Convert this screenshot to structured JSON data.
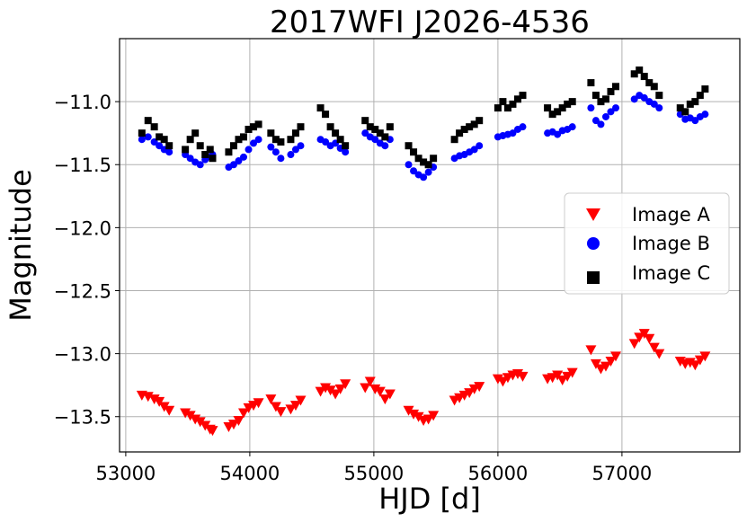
{
  "chart_data": {
    "type": "scatter",
    "title": "2017WFI J2026-4536",
    "xlabel": "HJD [d]",
    "ylabel": "Magnitude",
    "xlim": [
      52950,
      57950
    ],
    "ylim": [
      -10.5,
      -13.78
    ],
    "y_inverted": true,
    "grid": true,
    "legend_position": "center-right",
    "xticks": [
      53000,
      54000,
      55000,
      56000,
      57000
    ],
    "xtick_labels": [
      "53000",
      "54000",
      "55000",
      "56000",
      "57000"
    ],
    "yticks": [
      -11.0,
      -11.5,
      -12.0,
      -12.5,
      -13.0,
      -13.5
    ],
    "ytick_labels": [
      "−11.0",
      "−11.5",
      "−12.0",
      "−12.5",
      "−13.0",
      "−13.5"
    ],
    "series": [
      {
        "name": "Image A",
        "marker": "triangle-down",
        "color": "#ff0000",
        "x": [
          53130,
          53180,
          53230,
          53270,
          53310,
          53350,
          53480,
          53520,
          53560,
          53600,
          53640,
          53680,
          53700,
          53830,
          53870,
          53910,
          53950,
          53990,
          54030,
          54070,
          54170,
          54210,
          54250,
          54330,
          54370,
          54410,
          54570,
          54610,
          54650,
          54690,
          54730,
          54770,
          54930,
          54970,
          55010,
          55050,
          55090,
          55130,
          55280,
          55320,
          55360,
          55400,
          55440,
          55480,
          55650,
          55690,
          55730,
          55770,
          55810,
          55850,
          56000,
          56040,
          56080,
          56120,
          56160,
          56200,
          56400,
          56440,
          56480,
          56520,
          56560,
          56600,
          56750,
          56790,
          56830,
          56870,
          56910,
          56950,
          57100,
          57140,
          57180,
          57220,
          57260,
          57300,
          57470,
          57510,
          57550,
          57590,
          57630,
          57670
        ],
        "y": [
          -13.33,
          -13.34,
          -13.36,
          -13.38,
          -13.42,
          -13.45,
          -13.47,
          -13.49,
          -13.52,
          -13.54,
          -13.57,
          -13.6,
          -13.61,
          -13.58,
          -13.56,
          -13.53,
          -13.47,
          -13.43,
          -13.41,
          -13.39,
          -13.36,
          -13.42,
          -13.46,
          -13.44,
          -13.41,
          -13.37,
          -13.3,
          -13.27,
          -13.29,
          -13.32,
          -13.28,
          -13.24,
          -13.27,
          -13.22,
          -13.28,
          -13.3,
          -13.36,
          -13.32,
          -13.45,
          -13.48,
          -13.5,
          -13.53,
          -13.52,
          -13.49,
          -13.37,
          -13.35,
          -13.33,
          -13.31,
          -13.28,
          -13.26,
          -13.2,
          -13.22,
          -13.19,
          -13.17,
          -13.16,
          -13.18,
          -13.2,
          -13.19,
          -13.17,
          -13.21,
          -13.18,
          -13.15,
          -12.97,
          -13.08,
          -13.12,
          -13.1,
          -13.06,
          -13.02,
          -12.92,
          -12.87,
          -12.84,
          -12.88,
          -12.95,
          -13.0,
          -13.06,
          -13.08,
          -13.07,
          -13.09,
          -13.05,
          -13.02
        ]
      },
      {
        "name": "Image B",
        "marker": "circle",
        "color": "#0000ff",
        "x": [
          53130,
          53180,
          53230,
          53270,
          53310,
          53350,
          53480,
          53520,
          53560,
          53600,
          53640,
          53680,
          53700,
          53830,
          53870,
          53910,
          53950,
          53990,
          54030,
          54070,
          54170,
          54210,
          54250,
          54330,
          54370,
          54410,
          54570,
          54610,
          54650,
          54690,
          54730,
          54770,
          54930,
          54970,
          55010,
          55050,
          55090,
          55130,
          55280,
          55320,
          55360,
          55400,
          55440,
          55480,
          55650,
          55690,
          55730,
          55770,
          55810,
          55850,
          56000,
          56040,
          56080,
          56120,
          56160,
          56200,
          56400,
          56440,
          56480,
          56520,
          56560,
          56600,
          56750,
          56790,
          56830,
          56870,
          56910,
          56950,
          57100,
          57140,
          57180,
          57220,
          57260,
          57300,
          57470,
          57510,
          57550,
          57590,
          57630,
          57670
        ],
        "y": [
          -11.3,
          -11.28,
          -11.32,
          -11.35,
          -11.38,
          -11.4,
          -11.42,
          -11.45,
          -11.48,
          -11.5,
          -11.46,
          -11.44,
          -11.42,
          -11.52,
          -11.5,
          -11.47,
          -11.44,
          -11.38,
          -11.33,
          -11.3,
          -11.36,
          -11.4,
          -11.45,
          -11.42,
          -11.38,
          -11.35,
          -11.3,
          -11.32,
          -11.35,
          -11.33,
          -11.37,
          -11.4,
          -11.25,
          -11.28,
          -11.3,
          -11.33,
          -11.35,
          -11.3,
          -11.5,
          -11.55,
          -11.58,
          -11.6,
          -11.56,
          -11.52,
          -11.45,
          -11.43,
          -11.42,
          -11.4,
          -11.38,
          -11.35,
          -11.28,
          -11.27,
          -11.26,
          -11.25,
          -11.22,
          -11.2,
          -11.25,
          -11.24,
          -11.26,
          -11.23,
          -11.22,
          -11.2,
          -11.05,
          -11.15,
          -11.18,
          -11.12,
          -11.08,
          -11.05,
          -10.98,
          -10.95,
          -10.97,
          -11.0,
          -11.02,
          -11.05,
          -11.1,
          -11.14,
          -11.13,
          -11.15,
          -11.12,
          -11.1
        ]
      },
      {
        "name": "Image C",
        "marker": "square",
        "color": "#000000",
        "x": [
          53130,
          53180,
          53230,
          53270,
          53310,
          53350,
          53480,
          53520,
          53560,
          53600,
          53640,
          53680,
          53700,
          53830,
          53870,
          53910,
          53950,
          53990,
          54030,
          54070,
          54170,
          54210,
          54250,
          54330,
          54370,
          54410,
          54570,
          54610,
          54650,
          54690,
          54730,
          54770,
          54930,
          54970,
          55010,
          55050,
          55090,
          55130,
          55280,
          55320,
          55360,
          55400,
          55440,
          55480,
          55650,
          55690,
          55730,
          55770,
          55810,
          55850,
          56000,
          56040,
          56080,
          56120,
          56160,
          56200,
          56400,
          56440,
          56480,
          56520,
          56560,
          56600,
          56750,
          56790,
          56830,
          56870,
          56910,
          56950,
          57100,
          57140,
          57180,
          57220,
          57260,
          57300,
          57470,
          57510,
          57550,
          57590,
          57630,
          57670
        ],
        "y": [
          -11.25,
          -11.15,
          -11.2,
          -11.28,
          -11.3,
          -11.35,
          -11.38,
          -11.3,
          -11.25,
          -11.35,
          -11.42,
          -11.38,
          -11.45,
          -11.4,
          -11.35,
          -11.3,
          -11.28,
          -11.22,
          -11.2,
          -11.18,
          -11.25,
          -11.3,
          -11.32,
          -11.3,
          -11.25,
          -11.2,
          -11.05,
          -11.1,
          -11.2,
          -11.25,
          -11.3,
          -11.35,
          -11.15,
          -11.2,
          -11.22,
          -11.25,
          -11.28,
          -11.2,
          -11.35,
          -11.4,
          -11.45,
          -11.48,
          -11.5,
          -11.45,
          -11.3,
          -11.25,
          -11.22,
          -11.2,
          -11.18,
          -11.15,
          -11.05,
          -11.0,
          -11.05,
          -11.02,
          -10.98,
          -10.95,
          -11.05,
          -11.1,
          -11.08,
          -11.05,
          -11.02,
          -11.0,
          -10.85,
          -10.95,
          -11.0,
          -10.98,
          -10.92,
          -10.88,
          -10.78,
          -10.75,
          -10.8,
          -10.85,
          -10.88,
          -10.95,
          -11.05,
          -11.08,
          -11.02,
          -11.0,
          -10.95,
          -10.9
        ]
      }
    ]
  }
}
